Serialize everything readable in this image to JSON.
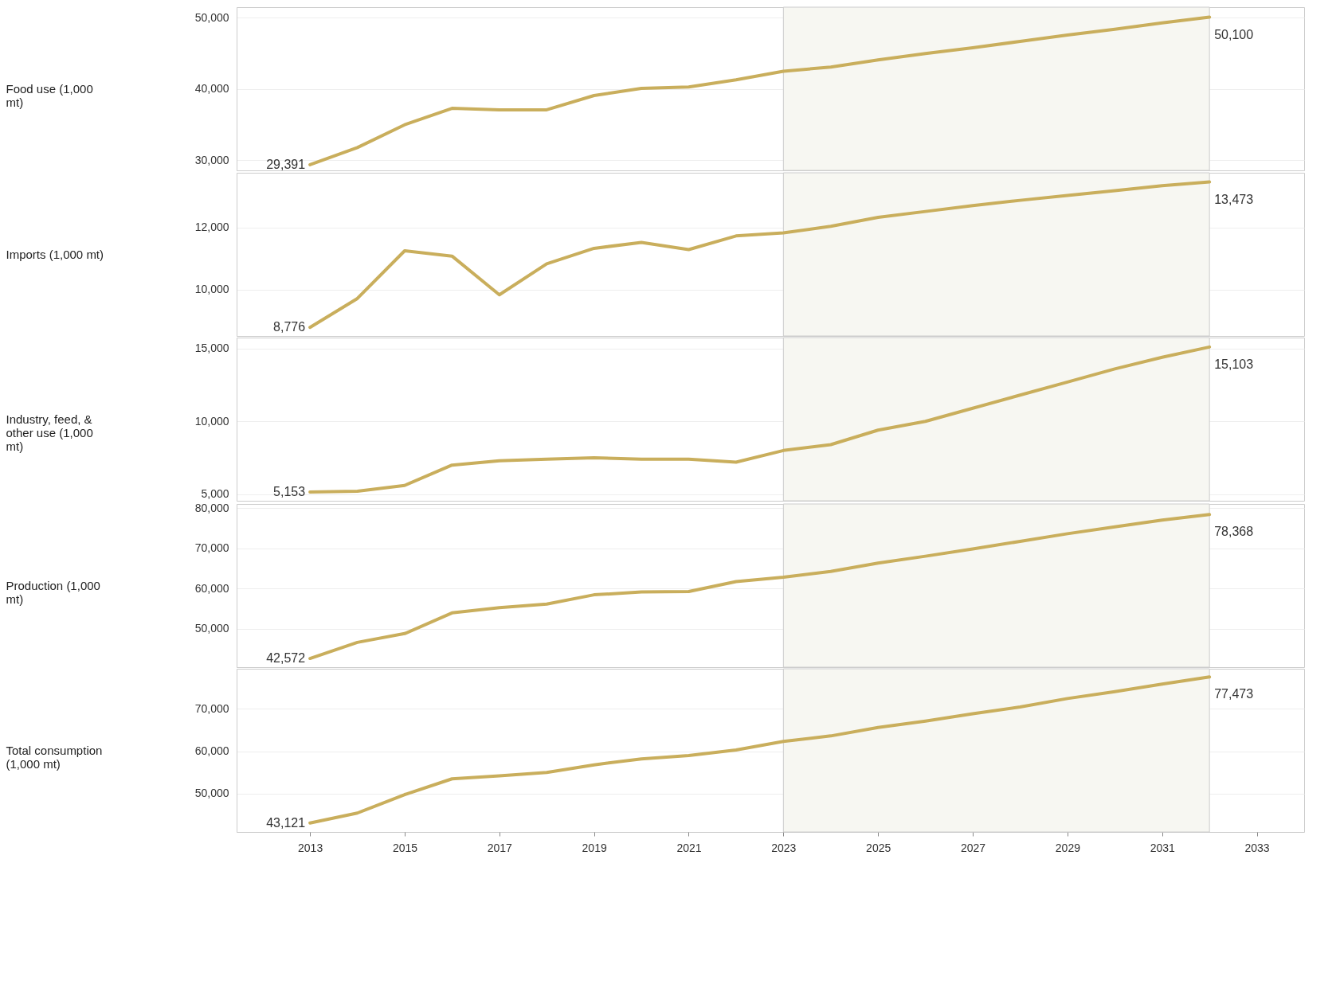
{
  "chart_data": [
    {
      "type": "line",
      "ylabel": "Food use (1,000 mt)",
      "x": [
        2013,
        2014,
        2015,
        2016,
        2017,
        2018,
        2019,
        2020,
        2021,
        2022,
        2023,
        2024,
        2025,
        2026,
        2027,
        2028,
        2029,
        2030,
        2031,
        2032
      ],
      "series": [
        {
          "color": "#c9ae5c",
          "values": [
            29391,
            31800,
            35000,
            37300,
            37100,
            37100,
            39100,
            40100,
            40300,
            41300,
            42500,
            43100,
            44100,
            45000,
            45800,
            46700,
            47600,
            48400,
            49300,
            50100
          ],
          "value_labels": [
            "29,391",
            null,
            null,
            null,
            null,
            null,
            null,
            null,
            null,
            null,
            null,
            null,
            null,
            null,
            null,
            null,
            null,
            null,
            null,
            "50,100"
          ]
        }
      ],
      "xlim": [
        2011.45,
        2034
      ],
      "ylim": [
        28600,
        51500
      ],
      "yticks": [
        {
          "value": 30000,
          "label": "30,000"
        },
        {
          "value": 40000,
          "label": "40,000"
        },
        {
          "value": 50000,
          "label": "50,000"
        }
      ],
      "grid": "y",
      "tick_labels": "y",
      "bands": [
        {
          "axis": "x",
          "from": 2023,
          "to": 2032,
          "color": "#f7f7f2"
        }
      ]
    },
    {
      "type": "line",
      "ylabel": "Imports (1,000 mt)",
      "x": [
        2013,
        2014,
        2015,
        2016,
        2017,
        2018,
        2019,
        2020,
        2021,
        2022,
        2023,
        2024,
        2025,
        2026,
        2027,
        2028,
        2029,
        2030,
        2031,
        2032
      ],
      "series": [
        {
          "color": "#c9ae5c",
          "values": [
            8776,
            9710,
            11250,
            11080,
            9830,
            10830,
            11330,
            11520,
            11290,
            11730,
            11830,
            12040,
            12330,
            12520,
            12710,
            12880,
            13040,
            13190,
            13350,
            13473
          ],
          "value_labels": [
            "8,776",
            null,
            null,
            null,
            null,
            null,
            null,
            null,
            null,
            null,
            null,
            null,
            null,
            null,
            null,
            null,
            null,
            null,
            null,
            "13,473"
          ]
        }
      ],
      "xlim": [
        2011.45,
        2034
      ],
      "ylim": [
        8500,
        13770
      ],
      "yticks": [
        {
          "value": 10000,
          "label": "10,000"
        },
        {
          "value": 12000,
          "label": "12,000"
        }
      ],
      "grid": "y",
      "tick_labels": "y",
      "bands": [
        {
          "axis": "x",
          "from": 2023,
          "to": 2032,
          "color": "#f7f7f2"
        }
      ]
    },
    {
      "type": "line",
      "ylabel": "Industry, feed, & other use (1,000 mt)",
      "x": [
        2013,
        2014,
        2015,
        2016,
        2017,
        2018,
        2019,
        2020,
        2021,
        2022,
        2023,
        2024,
        2025,
        2026,
        2027,
        2028,
        2029,
        2030,
        2031,
        2032
      ],
      "series": [
        {
          "color": "#c9ae5c",
          "values": [
            5153,
            5200,
            5600,
            7000,
            7300,
            7400,
            7500,
            7400,
            7400,
            7200,
            8000,
            8400,
            9400,
            10000,
            10900,
            11800,
            12700,
            13600,
            14400,
            15103
          ],
          "value_labels": [
            "5,153",
            null,
            null,
            null,
            null,
            null,
            null,
            null,
            null,
            null,
            null,
            null,
            null,
            null,
            null,
            null,
            null,
            null,
            null,
            "15,103"
          ]
        }
      ],
      "xlim": [
        2011.45,
        2034
      ],
      "ylim": [
        4550,
        15750
      ],
      "yticks": [
        {
          "value": 5000,
          "label": "5,000"
        },
        {
          "value": 10000,
          "label": "10,000"
        },
        {
          "value": 15000,
          "label": "15,000"
        }
      ],
      "grid": "y",
      "tick_labels": "y",
      "bands": [
        {
          "axis": "x",
          "from": 2023,
          "to": 2032,
          "color": "#f7f7f2"
        }
      ]
    },
    {
      "type": "line",
      "ylabel": "Production (1,000 mt)",
      "x": [
        2013,
        2014,
        2015,
        2016,
        2017,
        2018,
        2019,
        2020,
        2021,
        2022,
        2023,
        2024,
        2025,
        2026,
        2027,
        2028,
        2029,
        2030,
        2031,
        2032
      ],
      "series": [
        {
          "color": "#c9ae5c",
          "values": [
            42572,
            46560,
            48750,
            53900,
            55200,
            56100,
            58400,
            59100,
            59200,
            61700,
            62800,
            64200,
            66300,
            68000,
            69800,
            71700,
            73600,
            75300,
            77000,
            78368
          ],
          "value_labels": [
            "42,572",
            null,
            null,
            null,
            null,
            null,
            null,
            null,
            null,
            null,
            null,
            null,
            null,
            null,
            null,
            null,
            null,
            null,
            null,
            "78,368"
          ]
        }
      ],
      "xlim": [
        2011.45,
        2034
      ],
      "ylim": [
        40400,
        81000
      ],
      "yticks": [
        {
          "value": 50000,
          "label": "50,000"
        },
        {
          "value": 60000,
          "label": "60,000"
        },
        {
          "value": 70000,
          "label": "70,000"
        },
        {
          "value": 80000,
          "label": "80,000"
        }
      ],
      "grid": "y",
      "tick_labels": "y",
      "bands": [
        {
          "axis": "x",
          "from": 2023,
          "to": 2032,
          "color": "#f7f7f2"
        }
      ]
    },
    {
      "type": "line",
      "ylabel": "Total consumption (1,000 mt)",
      "x": [
        2013,
        2014,
        2015,
        2016,
        2017,
        2018,
        2019,
        2020,
        2021,
        2022,
        2023,
        2024,
        2025,
        2026,
        2027,
        2028,
        2029,
        2030,
        2031,
        2032
      ],
      "series": [
        {
          "color": "#c9ae5c",
          "values": [
            43121,
            45450,
            49800,
            53500,
            54200,
            55000,
            56800,
            58200,
            59000,
            60300,
            62300,
            63600,
            65600,
            67100,
            68800,
            70400,
            72400,
            74000,
            75800,
            77473
          ],
          "value_labels": [
            "43,121",
            null,
            null,
            null,
            null,
            null,
            null,
            null,
            null,
            null,
            null,
            null,
            null,
            null,
            null,
            null,
            null,
            null,
            null,
            "77,473"
          ]
        }
      ],
      "xlim": [
        2011.45,
        2034
      ],
      "ylim": [
        41000,
        79400
      ],
      "yticks": [
        {
          "value": 50000,
          "label": "50,000"
        },
        {
          "value": 60000,
          "label": "60,000"
        },
        {
          "value": 70000,
          "label": "70,000"
        }
      ],
      "xticks": [
        2013,
        2015,
        2017,
        2019,
        2021,
        2023,
        2025,
        2027,
        2029,
        2031,
        2033
      ],
      "grid": "y",
      "bands": [
        {
          "axis": "x",
          "from": 2023,
          "to": 2032,
          "color": "#f7f7f2"
        }
      ]
    }
  ]
}
